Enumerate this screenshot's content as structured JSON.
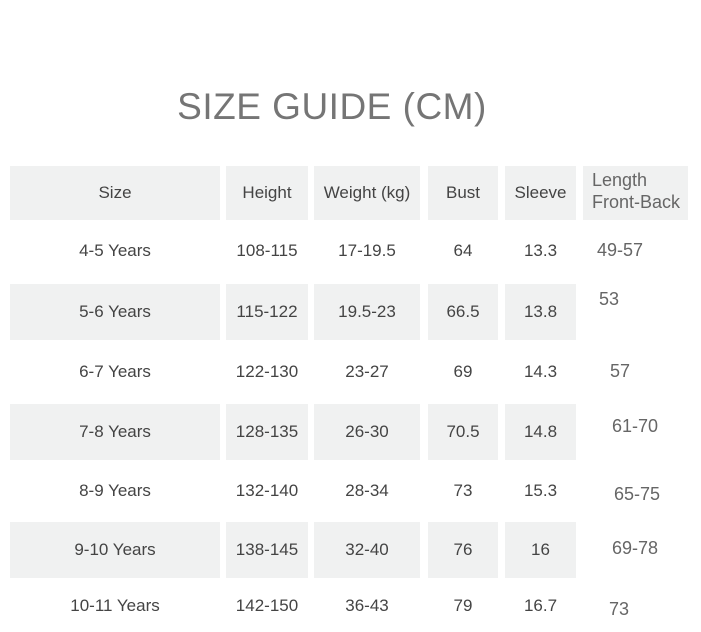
{
  "title": "SIZE GUIDE (CM)",
  "table": {
    "headers": [
      "Size",
      "Height",
      "Weight (kg)",
      "Bust",
      "Sleeve",
      "Length Front-Back"
    ],
    "header_length_lines": [
      "Length",
      "Front-Back"
    ],
    "rows": [
      [
        "4-5 Years",
        "108-115",
        "17-19.5",
        "64",
        "13.3",
        "49-57"
      ],
      [
        "5-6 Years",
        "115-122",
        "19.5-23",
        "66.5",
        "13.8",
        "53"
      ],
      [
        "6-7 Years",
        "122-130",
        "23-27",
        "69",
        "14.3",
        "57"
      ],
      [
        "7-8 Years",
        "128-135",
        "26-30",
        "70.5",
        "14.8",
        "61-70"
      ],
      [
        "8-9 Years",
        "132-140",
        "28-34",
        "73",
        "15.3",
        "65-75"
      ],
      [
        "9-10 Years",
        "138-145",
        "32-40",
        "76",
        "16",
        "69-78"
      ],
      [
        "10-11 Years",
        "142-150",
        "36-43",
        "79",
        "16.7",
        "73"
      ]
    ]
  },
  "colors": {
    "shade": "#f0f1f1",
    "title": "#757575",
    "text": "#444444"
  }
}
